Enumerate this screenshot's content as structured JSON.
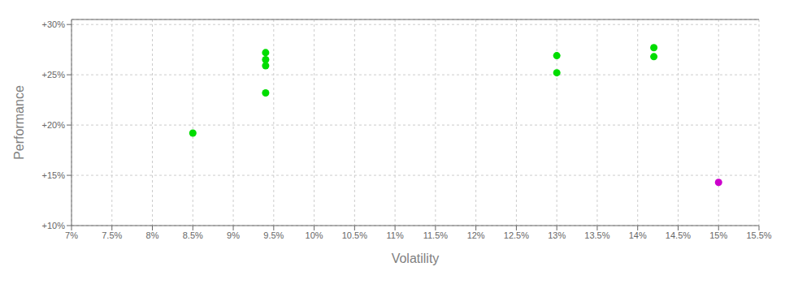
{
  "chart_data": {
    "type": "scatter",
    "x_label": "Volatility",
    "y_label": "Performance",
    "xlim": [
      0.07,
      0.155
    ],
    "ylim": [
      0.1,
      0.305
    ],
    "xticks": [
      {
        "value": 0.07,
        "label": "7%"
      },
      {
        "value": 0.075,
        "label": "7.5%"
      },
      {
        "value": 0.08,
        "label": "8%"
      },
      {
        "value": 0.085,
        "label": "8.5%"
      },
      {
        "value": 0.09,
        "label": "9%"
      },
      {
        "value": 0.095,
        "label": "9.5%"
      },
      {
        "value": 0.1,
        "label": "10%"
      },
      {
        "value": 0.105,
        "label": "10.5%"
      },
      {
        "value": 0.11,
        "label": "11%"
      },
      {
        "value": 0.115,
        "label": "11.5%"
      },
      {
        "value": 0.12,
        "label": "12%"
      },
      {
        "value": 0.125,
        "label": "12.5%"
      },
      {
        "value": 0.13,
        "label": "13%"
      },
      {
        "value": 0.135,
        "label": "13.5%"
      },
      {
        "value": 0.14,
        "label": "14%"
      },
      {
        "value": 0.145,
        "label": "14.5%"
      },
      {
        "value": 0.15,
        "label": "15%"
      },
      {
        "value": 0.155,
        "label": "15.5%"
      }
    ],
    "yticks": [
      {
        "value": 0.1,
        "label": "+10%"
      },
      {
        "value": 0.15,
        "label": "+15%"
      },
      {
        "value": 0.2,
        "label": "+20%"
      },
      {
        "value": 0.25,
        "label": "+25%"
      },
      {
        "value": 0.3,
        "label": "+30%"
      }
    ],
    "grid": true,
    "series": [
      {
        "color": "#00dd00",
        "marker": "circle",
        "x": [
          0.085,
          0.094,
          0.094,
          0.094,
          0.094,
          0.13,
          0.13,
          0.142,
          0.142
        ],
        "values": [
          0.192,
          0.272,
          0.265,
          0.259,
          0.232,
          0.269,
          0.252,
          0.277,
          0.268
        ]
      },
      {
        "color": "#cc00cc",
        "marker": "circle",
        "x": [
          0.15
        ],
        "values": [
          0.143
        ]
      }
    ]
  }
}
